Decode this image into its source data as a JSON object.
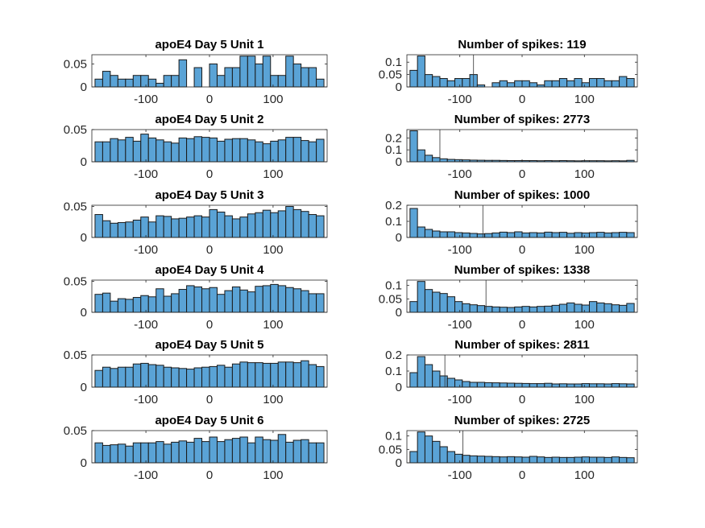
{
  "figure": {
    "background": "#ffffff",
    "bar_color": "#5aa3d6",
    "edge_color": "#1a1a1a"
  },
  "chart_data": [
    {
      "type": "bar",
      "title": "apoE4 Day 5 Unit 1",
      "xlim": [
        -185,
        185
      ],
      "ylim": [
        0,
        0.07
      ],
      "xticks": [
        -100,
        0,
        100
      ],
      "xtick_labels": [
        "-100",
        "0",
        "100"
      ],
      "yticks": [
        0,
        0.05
      ],
      "ytick_labels": [
        "0",
        "0.05"
      ],
      "grid": false,
      "bin_edges": [
        -180,
        -168,
        -156,
        -144,
        -132,
        -120,
        -108,
        -96,
        -84,
        -72,
        -60,
        -48,
        -36,
        -24,
        -12,
        0,
        12,
        24,
        36,
        48,
        60,
        72,
        84,
        96,
        108,
        120,
        132,
        144,
        156,
        168,
        180
      ],
      "values": [
        0.017,
        0.034,
        0.025,
        0.017,
        0.017,
        0.025,
        0.025,
        0.017,
        0.008,
        0.025,
        0.025,
        0.059,
        0.0,
        0.042,
        0.0,
        0.05,
        0.025,
        0.042,
        0.042,
        0.067,
        0.067,
        0.05,
        0.067,
        0.025,
        0.025,
        0.067,
        0.05,
        0.042,
        0.042,
        0.017
      ]
    },
    {
      "type": "bar",
      "title": "Number of spikes: 119",
      "xlim": [
        -185,
        185
      ],
      "ylim": [
        0,
        0.13
      ],
      "xticks": [
        -100,
        0,
        100
      ],
      "xtick_labels": [
        "-100",
        "0",
        "100"
      ],
      "yticks": [
        0,
        0.05,
        0.1
      ],
      "ytick_labels": [
        "0",
        "0.05",
        "0.1"
      ],
      "grid": false,
      "reference_line_x": -78,
      "bin_edges": [
        -180,
        -168,
        -156,
        -144,
        -132,
        -120,
        -108,
        -96,
        -84,
        -72,
        -60,
        -48,
        -36,
        -24,
        -12,
        0,
        12,
        24,
        36,
        48,
        60,
        72,
        84,
        96,
        108,
        120,
        132,
        144,
        156,
        168,
        180
      ],
      "values": [
        0.067,
        0.125,
        0.05,
        0.042,
        0.034,
        0.025,
        0.034,
        0.034,
        0.05,
        0.008,
        0.0,
        0.017,
        0.025,
        0.017,
        0.025,
        0.025,
        0.017,
        0.008,
        0.025,
        0.025,
        0.034,
        0.025,
        0.034,
        0.017,
        0.034,
        0.034,
        0.025,
        0.025,
        0.042,
        0.034
      ]
    },
    {
      "type": "bar",
      "title": "apoE4 Day 5 Unit 2",
      "xlim": [
        -185,
        185
      ],
      "ylim": [
        0,
        0.05
      ],
      "xticks": [
        -100,
        0,
        100
      ],
      "xtick_labels": [
        "-100",
        "0",
        "100"
      ],
      "yticks": [
        0,
        0.05
      ],
      "ytick_labels": [
        "0",
        "0.05"
      ],
      "grid": false,
      "bin_edges": [
        -180,
        -168,
        -156,
        -144,
        -132,
        -120,
        -108,
        -96,
        -84,
        -72,
        -60,
        -48,
        -36,
        -24,
        -12,
        0,
        12,
        24,
        36,
        48,
        60,
        72,
        84,
        96,
        108,
        120,
        132,
        144,
        156,
        168,
        180
      ],
      "values": [
        0.031,
        0.031,
        0.036,
        0.034,
        0.038,
        0.032,
        0.043,
        0.037,
        0.034,
        0.031,
        0.029,
        0.037,
        0.036,
        0.039,
        0.038,
        0.037,
        0.032,
        0.035,
        0.036,
        0.036,
        0.034,
        0.031,
        0.028,
        0.032,
        0.034,
        0.038,
        0.038,
        0.033,
        0.031,
        0.035
      ]
    },
    {
      "type": "bar",
      "title": "Number of spikes: 2773",
      "xlim": [
        -185,
        185
      ],
      "ylim": [
        0,
        0.27
      ],
      "xticks": [
        -100,
        0,
        100
      ],
      "xtick_labels": [
        "-100",
        "0",
        "100"
      ],
      "yticks": [
        0,
        0.1,
        0.2
      ],
      "ytick_labels": [
        "0",
        "0.1",
        "0.2"
      ],
      "grid": false,
      "reference_line_x": -132,
      "bin_edges": [
        -180,
        -168,
        -156,
        -144,
        -132,
        -120,
        -108,
        -96,
        -84,
        -72,
        -60,
        -48,
        -36,
        -24,
        -12,
        0,
        12,
        24,
        36,
        48,
        60,
        72,
        84,
        96,
        108,
        120,
        132,
        144,
        156,
        168,
        180
      ],
      "values": [
        0.26,
        0.1,
        0.055,
        0.035,
        0.025,
        0.02,
        0.018,
        0.016,
        0.014,
        0.013,
        0.012,
        0.012,
        0.011,
        0.01,
        0.01,
        0.01,
        0.01,
        0.009,
        0.01,
        0.009,
        0.01,
        0.009,
        0.008,
        0.009,
        0.009,
        0.009,
        0.008,
        0.009,
        0.008,
        0.012
      ]
    },
    {
      "type": "bar",
      "title": "apoE4 Day 5 Unit 3",
      "xlim": [
        -185,
        185
      ],
      "ylim": [
        0,
        0.052
      ],
      "xticks": [
        -100,
        0,
        100
      ],
      "xtick_labels": [
        "-100",
        "0",
        "100"
      ],
      "yticks": [
        0,
        0.05
      ],
      "ytick_labels": [
        "0",
        "0.05"
      ],
      "grid": false,
      "bin_edges": [
        -180,
        -168,
        -156,
        -144,
        -132,
        -120,
        -108,
        -96,
        -84,
        -72,
        -60,
        -48,
        -36,
        -24,
        -12,
        0,
        12,
        24,
        36,
        48,
        60,
        72,
        84,
        96,
        108,
        120,
        132,
        144,
        156,
        168,
        180
      ],
      "values": [
        0.037,
        0.027,
        0.023,
        0.024,
        0.025,
        0.028,
        0.033,
        0.025,
        0.035,
        0.034,
        0.03,
        0.031,
        0.033,
        0.035,
        0.033,
        0.045,
        0.041,
        0.035,
        0.03,
        0.033,
        0.038,
        0.04,
        0.044,
        0.04,
        0.043,
        0.05,
        0.045,
        0.042,
        0.037,
        0.035
      ]
    },
    {
      "type": "bar",
      "title": "Number of spikes: 1000",
      "xlim": [
        -185,
        185
      ],
      "ylim": [
        0,
        0.2
      ],
      "xticks": [
        -100,
        0,
        100
      ],
      "xtick_labels": [
        "-100",
        "0",
        "100"
      ],
      "yticks": [
        0,
        0.1,
        0.2
      ],
      "ytick_labels": [
        "0",
        "0.1",
        "0.2"
      ],
      "grid": false,
      "reference_line_x": -63,
      "bin_edges": [
        -180,
        -168,
        -156,
        -144,
        -132,
        -120,
        -108,
        -96,
        -84,
        -72,
        -60,
        -48,
        -36,
        -24,
        -12,
        0,
        12,
        24,
        36,
        48,
        60,
        72,
        84,
        96,
        108,
        120,
        132,
        144,
        156,
        168,
        180
      ],
      "values": [
        0.18,
        0.065,
        0.05,
        0.04,
        0.035,
        0.035,
        0.03,
        0.028,
        0.025,
        0.022,
        0.024,
        0.028,
        0.033,
        0.03,
        0.035,
        0.028,
        0.03,
        0.028,
        0.033,
        0.03,
        0.032,
        0.026,
        0.03,
        0.028,
        0.03,
        0.032,
        0.028,
        0.03,
        0.032,
        0.03
      ]
    },
    {
      "type": "bar",
      "title": "apoE4 Day 5 Unit 4",
      "xlim": [
        -185,
        185
      ],
      "ylim": [
        0,
        0.052
      ],
      "xticks": [
        -100,
        0,
        100
      ],
      "xtick_labels": [
        "-100",
        "0",
        "100"
      ],
      "yticks": [
        0,
        0.05
      ],
      "ytick_labels": [
        "0",
        "0.05"
      ],
      "grid": false,
      "bin_edges": [
        -180,
        -168,
        -156,
        -144,
        -132,
        -120,
        -108,
        -96,
        -84,
        -72,
        -60,
        -48,
        -36,
        -24,
        -12,
        0,
        12,
        24,
        36,
        48,
        60,
        72,
        84,
        96,
        108,
        120,
        132,
        144,
        156,
        168,
        180
      ],
      "values": [
        0.029,
        0.031,
        0.018,
        0.022,
        0.021,
        0.024,
        0.027,
        0.025,
        0.038,
        0.026,
        0.03,
        0.037,
        0.043,
        0.041,
        0.038,
        0.04,
        0.029,
        0.035,
        0.041,
        0.036,
        0.033,
        0.042,
        0.043,
        0.045,
        0.043,
        0.04,
        0.038,
        0.035,
        0.03,
        0.03
      ]
    },
    {
      "type": "bar",
      "title": "Number of spikes: 1338",
      "xlim": [
        -185,
        185
      ],
      "ylim": [
        0,
        0.12
      ],
      "xticks": [
        -100,
        0,
        100
      ],
      "xtick_labels": [
        "-100",
        "0",
        "100"
      ],
      "yticks": [
        0,
        0.05,
        0.1
      ],
      "ytick_labels": [
        "0",
        "0.05",
        "0.1"
      ],
      "grid": false,
      "reference_line_x": -58,
      "bin_edges": [
        -180,
        -168,
        -156,
        -144,
        -132,
        -120,
        -108,
        -96,
        -84,
        -72,
        -60,
        -48,
        -36,
        -24,
        -12,
        0,
        12,
        24,
        36,
        48,
        60,
        72,
        84,
        96,
        108,
        120,
        132,
        144,
        156,
        168,
        180
      ],
      "values": [
        0.04,
        0.115,
        0.085,
        0.075,
        0.07,
        0.058,
        0.04,
        0.032,
        0.028,
        0.025,
        0.022,
        0.02,
        0.019,
        0.018,
        0.02,
        0.022,
        0.02,
        0.022,
        0.023,
        0.026,
        0.03,
        0.035,
        0.03,
        0.027,
        0.04,
        0.035,
        0.032,
        0.028,
        0.026,
        0.033
      ]
    },
    {
      "type": "bar",
      "title": "apoE4 Day 5 Unit 5",
      "xlim": [
        -185,
        185
      ],
      "ylim": [
        0,
        0.05
      ],
      "xticks": [
        -100,
        0,
        100
      ],
      "xtick_labels": [
        "-100",
        "0",
        "100"
      ],
      "yticks": [
        0,
        0.05
      ],
      "ytick_labels": [
        "0",
        "0.05"
      ],
      "grid": false,
      "bin_edges": [
        -180,
        -168,
        -156,
        -144,
        -132,
        -120,
        -108,
        -96,
        -84,
        -72,
        -60,
        -48,
        -36,
        -24,
        -12,
        0,
        12,
        24,
        36,
        48,
        60,
        72,
        84,
        96,
        108,
        120,
        132,
        144,
        156,
        168,
        180
      ],
      "values": [
        0.026,
        0.031,
        0.029,
        0.031,
        0.031,
        0.036,
        0.037,
        0.035,
        0.034,
        0.031,
        0.03,
        0.029,
        0.028,
        0.03,
        0.031,
        0.032,
        0.034,
        0.031,
        0.036,
        0.039,
        0.038,
        0.038,
        0.037,
        0.037,
        0.039,
        0.039,
        0.038,
        0.041,
        0.035,
        0.032
      ]
    },
    {
      "type": "bar",
      "title": "Number of spikes: 2811",
      "xlim": [
        -185,
        185
      ],
      "ylim": [
        0,
        0.2
      ],
      "xticks": [
        -100,
        0,
        100
      ],
      "xtick_labels": [
        "-100",
        "0",
        "100"
      ],
      "yticks": [
        0,
        0.1,
        0.2
      ],
      "ytick_labels": [
        "0",
        "0.1",
        "0.2"
      ],
      "grid": false,
      "reference_line_x": -124,
      "bin_edges": [
        -180,
        -168,
        -156,
        -144,
        -132,
        -120,
        -108,
        -96,
        -84,
        -72,
        -60,
        -48,
        -36,
        -24,
        -12,
        0,
        12,
        24,
        36,
        48,
        60,
        72,
        84,
        96,
        108,
        120,
        132,
        144,
        156,
        168,
        180
      ],
      "values": [
        0.09,
        0.19,
        0.14,
        0.1,
        0.07,
        0.055,
        0.045,
        0.035,
        0.03,
        0.03,
        0.028,
        0.027,
        0.026,
        0.025,
        0.024,
        0.023,
        0.022,
        0.022,
        0.024,
        0.02,
        0.021,
        0.02,
        0.02,
        0.022,
        0.021,
        0.021,
        0.02,
        0.022,
        0.021,
        0.02
      ]
    },
    {
      "type": "bar",
      "title": "apoE4 Day 5 Unit 6",
      "xlim": [
        -185,
        185
      ],
      "ylim": [
        0,
        0.05
      ],
      "xticks": [
        -100,
        0,
        100
      ],
      "xtick_labels": [
        "-100",
        "0",
        "100"
      ],
      "yticks": [
        0,
        0.05
      ],
      "ytick_labels": [
        "0",
        "0.05"
      ],
      "grid": false,
      "bin_edges": [
        -180,
        -168,
        -156,
        -144,
        -132,
        -120,
        -108,
        -96,
        -84,
        -72,
        -60,
        -48,
        -36,
        -24,
        -12,
        0,
        12,
        24,
        36,
        48,
        60,
        72,
        84,
        96,
        108,
        120,
        132,
        144,
        156,
        168,
        180
      ],
      "values": [
        0.031,
        0.027,
        0.028,
        0.029,
        0.026,
        0.031,
        0.031,
        0.031,
        0.033,
        0.029,
        0.032,
        0.034,
        0.032,
        0.038,
        0.033,
        0.04,
        0.033,
        0.036,
        0.038,
        0.04,
        0.031,
        0.04,
        0.036,
        0.035,
        0.044,
        0.032,
        0.035,
        0.036,
        0.031,
        0.031
      ]
    },
    {
      "type": "bar",
      "title": "Number of spikes: 2725",
      "xlim": [
        -185,
        185
      ],
      "ylim": [
        0,
        0.12
      ],
      "xticks": [
        -100,
        0,
        100
      ],
      "xtick_labels": [
        "-100",
        "0",
        "100"
      ],
      "yticks": [
        0,
        0.05,
        0.1
      ],
      "ytick_labels": [
        "0",
        "0.05",
        "0.1"
      ],
      "grid": false,
      "reference_line_x": -95,
      "bin_edges": [
        -180,
        -168,
        -156,
        -144,
        -132,
        -120,
        -108,
        -96,
        -84,
        -72,
        -60,
        -48,
        -36,
        -24,
        -12,
        0,
        12,
        24,
        36,
        48,
        60,
        72,
        84,
        96,
        108,
        120,
        132,
        144,
        156,
        168,
        180
      ],
      "values": [
        0.042,
        0.115,
        0.1,
        0.08,
        0.06,
        0.042,
        0.032,
        0.028,
        0.026,
        0.025,
        0.024,
        0.023,
        0.022,
        0.023,
        0.022,
        0.021,
        0.024,
        0.022,
        0.02,
        0.021,
        0.02,
        0.02,
        0.021,
        0.022,
        0.021,
        0.021,
        0.02,
        0.022,
        0.02,
        0.019
      ]
    }
  ]
}
